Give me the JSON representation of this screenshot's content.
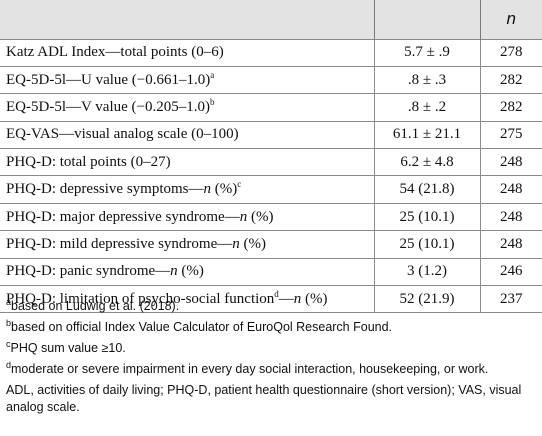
{
  "table": {
    "header_n": "n",
    "rows": [
      {
        "pre": "Katz ADL Index—total points (0–6)",
        "value": "5.7 ± .9",
        "n": "278"
      },
      {
        "pre": "EQ-5D-5l—U value (−0.661–1.0)",
        "sup": "a",
        "value": ".8 ± .3",
        "n": "282"
      },
      {
        "pre": "EQ-5D-5l—V value (−0.205–1.0)",
        "sup": "b",
        "value": ".8 ± .2",
        "n": "282"
      },
      {
        "pre": "EQ-VAS—visual analog scale (0–100)",
        "value": "61.1 ± 21.1",
        "n": "275"
      },
      {
        "pre": "PHQ-D: total points (0–27)",
        "value": "6.2 ± 4.8",
        "n": "248"
      },
      {
        "pre": "PHQ-D: depressive symptoms—",
        "ital": "n",
        "post": " (%)",
        "sup": "c",
        "value": "54 (21.8)",
        "n": "248"
      },
      {
        "pre": "PHQ-D: major depressive syndrome—",
        "ital": "n",
        "post": " (%)",
        "value": "25 (10.1)",
        "n": "248"
      },
      {
        "pre": "PHQ-D: mild depressive syndrome—",
        "ital": "n",
        "post": " (%)",
        "value": "25 (10.1)",
        "n": "248"
      },
      {
        "pre": "PHQ-D: panic syndrome—",
        "ital": "n",
        "post": " (%)",
        "value": "3 (1.2)",
        "n": "246"
      },
      {
        "pre": "PHQ-D: limitation of psycho-social function",
        "sup2": "d",
        "pre2": "—",
        "ital": "n",
        "post": " (%)",
        "value": "52 (21.9)",
        "n": "237"
      }
    ]
  },
  "footnotes": [
    {
      "marker": "a",
      "text": "based on Ludwig et al. (2018)."
    },
    {
      "marker": "b",
      "text": "based on official Index Value Calculator of EuroQol Research Found."
    },
    {
      "marker": "c",
      "text": "PHQ sum value ≥10."
    },
    {
      "marker": "d",
      "text": "moderate or severe impairment in every day social interaction, housekeeping, or work."
    }
  ],
  "abbreviations": "ADL, activities of daily living; PHQ-D, patient health questionnaire (short version); VAS, visual analog scale."
}
